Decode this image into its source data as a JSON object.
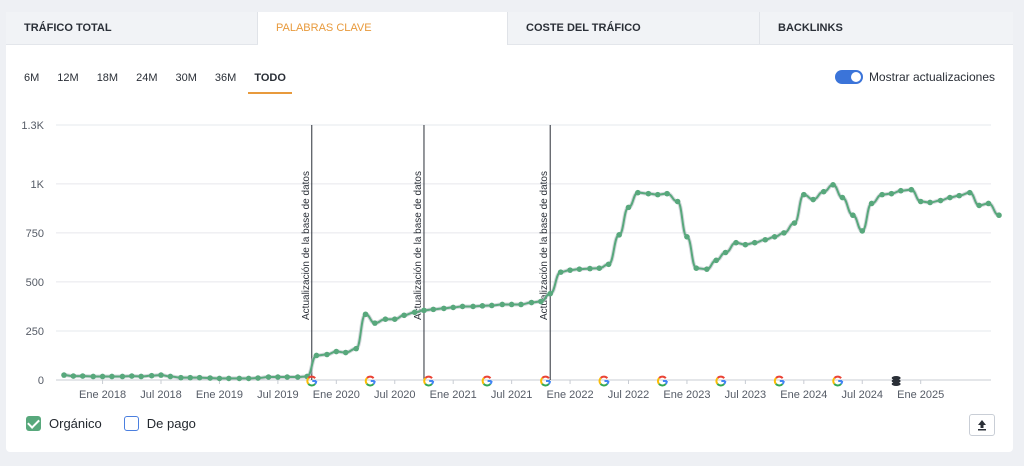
{
  "tabs": [
    {
      "label": "TRÁFICO TOTAL",
      "active": false
    },
    {
      "label": "PALABRAS CLAVE",
      "active": true
    },
    {
      "label": "COSTE DEL TRÁFICO",
      "active": false
    },
    {
      "label": "BACKLINKS",
      "active": false
    }
  ],
  "ranges": [
    "6M",
    "12M",
    "18M",
    "24M",
    "30M",
    "36M",
    "TODO"
  ],
  "active_range": "TODO",
  "toggle": {
    "label": "Mostrar actualizaciones",
    "on": true
  },
  "legend": [
    {
      "label": "Orgánico",
      "checked": true,
      "color": "#58a87c"
    },
    {
      "label": "De pago",
      "checked": false,
      "color": "#4b7fdf"
    }
  ],
  "colors": {
    "accent": "#e89a3c",
    "series": "#58a87c",
    "grid": "#e6e8ec"
  },
  "chart_data": {
    "type": "line",
    "ylim": [
      0,
      1300
    ],
    "yticks": [
      0,
      250,
      500,
      750,
      1000,
      1300
    ],
    "ytick_labels": [
      "0",
      "250",
      "500",
      "750",
      "1K",
      "1.3K"
    ],
    "xticks": [
      {
        "t": 2018.0,
        "label": "Ene 2018"
      },
      {
        "t": 2018.5,
        "label": "Jul 2018"
      },
      {
        "t": 2019.0,
        "label": "Ene 2019"
      },
      {
        "t": 2019.5,
        "label": "Jul 2019"
      },
      {
        "t": 2020.0,
        "label": "Ene 2020"
      },
      {
        "t": 2020.5,
        "label": "Jul 2020"
      },
      {
        "t": 2021.0,
        "label": "Ene 2021"
      },
      {
        "t": 2021.5,
        "label": "Jul 2021"
      },
      {
        "t": 2022.0,
        "label": "Ene 2022"
      },
      {
        "t": 2022.5,
        "label": "Jul 2022"
      },
      {
        "t": 2023.0,
        "label": "Ene 2023"
      },
      {
        "t": 2023.5,
        "label": "Jul 2023"
      },
      {
        "t": 2024.0,
        "label": "Ene 2024"
      },
      {
        "t": 2024.5,
        "label": "Jul 2024"
      },
      {
        "t": 2025.0,
        "label": "Ene 2025"
      }
    ],
    "series": [
      {
        "name": "Orgánico",
        "points": [
          [
            2017.67,
            25
          ],
          [
            2017.75,
            20
          ],
          [
            2017.83,
            20
          ],
          [
            2017.92,
            18
          ],
          [
            2018.0,
            18
          ],
          [
            2018.08,
            18
          ],
          [
            2018.17,
            18
          ],
          [
            2018.25,
            20
          ],
          [
            2018.33,
            18
          ],
          [
            2018.42,
            22
          ],
          [
            2018.5,
            25
          ],
          [
            2018.58,
            18
          ],
          [
            2018.67,
            12
          ],
          [
            2018.75,
            12
          ],
          [
            2018.83,
            12
          ],
          [
            2018.92,
            10
          ],
          [
            2019.0,
            8
          ],
          [
            2019.08,
            8
          ],
          [
            2019.17,
            8
          ],
          [
            2019.25,
            8
          ],
          [
            2019.33,
            10
          ],
          [
            2019.42,
            15
          ],
          [
            2019.5,
            15
          ],
          [
            2019.58,
            15
          ],
          [
            2019.67,
            15
          ],
          [
            2019.75,
            18
          ],
          [
            2019.83,
            125
          ],
          [
            2019.92,
            130
          ],
          [
            2020.0,
            145
          ],
          [
            2020.08,
            140
          ],
          [
            2020.17,
            160
          ],
          [
            2020.25,
            335
          ],
          [
            2020.33,
            290
          ],
          [
            2020.42,
            310
          ],
          [
            2020.5,
            310
          ],
          [
            2020.58,
            330
          ],
          [
            2020.67,
            345
          ],
          [
            2020.75,
            355
          ],
          [
            2020.83,
            360
          ],
          [
            2020.92,
            365
          ],
          [
            2021.0,
            370
          ],
          [
            2021.08,
            375
          ],
          [
            2021.17,
            375
          ],
          [
            2021.25,
            378
          ],
          [
            2021.33,
            380
          ],
          [
            2021.42,
            385
          ],
          [
            2021.5,
            385
          ],
          [
            2021.58,
            385
          ],
          [
            2021.67,
            395
          ],
          [
            2021.75,
            400
          ],
          [
            2021.83,
            440
          ],
          [
            2021.92,
            550
          ],
          [
            2022.0,
            560
          ],
          [
            2022.08,
            565
          ],
          [
            2022.17,
            568
          ],
          [
            2022.25,
            570
          ],
          [
            2022.33,
            590
          ],
          [
            2022.42,
            740
          ],
          [
            2022.5,
            880
          ],
          [
            2022.58,
            955
          ],
          [
            2022.67,
            950
          ],
          [
            2022.75,
            945
          ],
          [
            2022.83,
            950
          ],
          [
            2022.92,
            910
          ],
          [
            2023.0,
            730
          ],
          [
            2023.08,
            570
          ],
          [
            2023.17,
            565
          ],
          [
            2023.25,
            610
          ],
          [
            2023.33,
            650
          ],
          [
            2023.42,
            700
          ],
          [
            2023.5,
            690
          ],
          [
            2023.58,
            700
          ],
          [
            2023.67,
            715
          ],
          [
            2023.75,
            730
          ],
          [
            2023.83,
            750
          ],
          [
            2023.92,
            800
          ],
          [
            2024.0,
            945
          ],
          [
            2024.08,
            920
          ],
          [
            2024.17,
            960
          ],
          [
            2024.25,
            995
          ],
          [
            2024.33,
            930
          ],
          [
            2024.42,
            840
          ],
          [
            2024.5,
            760
          ],
          [
            2024.58,
            900
          ],
          [
            2024.67,
            945
          ],
          [
            2024.75,
            950
          ],
          [
            2024.83,
            965
          ],
          [
            2024.92,
            970
          ],
          [
            2025.0,
            910
          ],
          [
            2025.08,
            905
          ],
          [
            2025.17,
            915
          ],
          [
            2025.25,
            930
          ],
          [
            2025.33,
            940
          ],
          [
            2025.42,
            955
          ],
          [
            2025.5,
            890
          ],
          [
            2025.58,
            900
          ],
          [
            2025.67,
            840
          ]
        ]
      }
    ],
    "annotations": [
      {
        "t": 2019.79,
        "label": "Actualización de la base de datos"
      },
      {
        "t": 2020.75,
        "label": "Actualización de la base de datos"
      },
      {
        "t": 2021.83,
        "label": "Actualización de la base de datos"
      }
    ],
    "event_markers": [
      {
        "t": 2019.79,
        "kind": "google-icon"
      },
      {
        "t": 2020.29,
        "kind": "google-icon"
      },
      {
        "t": 2020.79,
        "kind": "google-icon"
      },
      {
        "t": 2021.29,
        "kind": "google-icon"
      },
      {
        "t": 2021.79,
        "kind": "google-icon"
      },
      {
        "t": 2022.29,
        "kind": "google-icon"
      },
      {
        "t": 2022.79,
        "kind": "google-icon"
      },
      {
        "t": 2023.29,
        "kind": "google-icon"
      },
      {
        "t": 2023.79,
        "kind": "google-icon"
      },
      {
        "t": 2024.29,
        "kind": "google-icon"
      },
      {
        "t": 2024.79,
        "kind": "database-icon"
      }
    ],
    "grid": true
  }
}
